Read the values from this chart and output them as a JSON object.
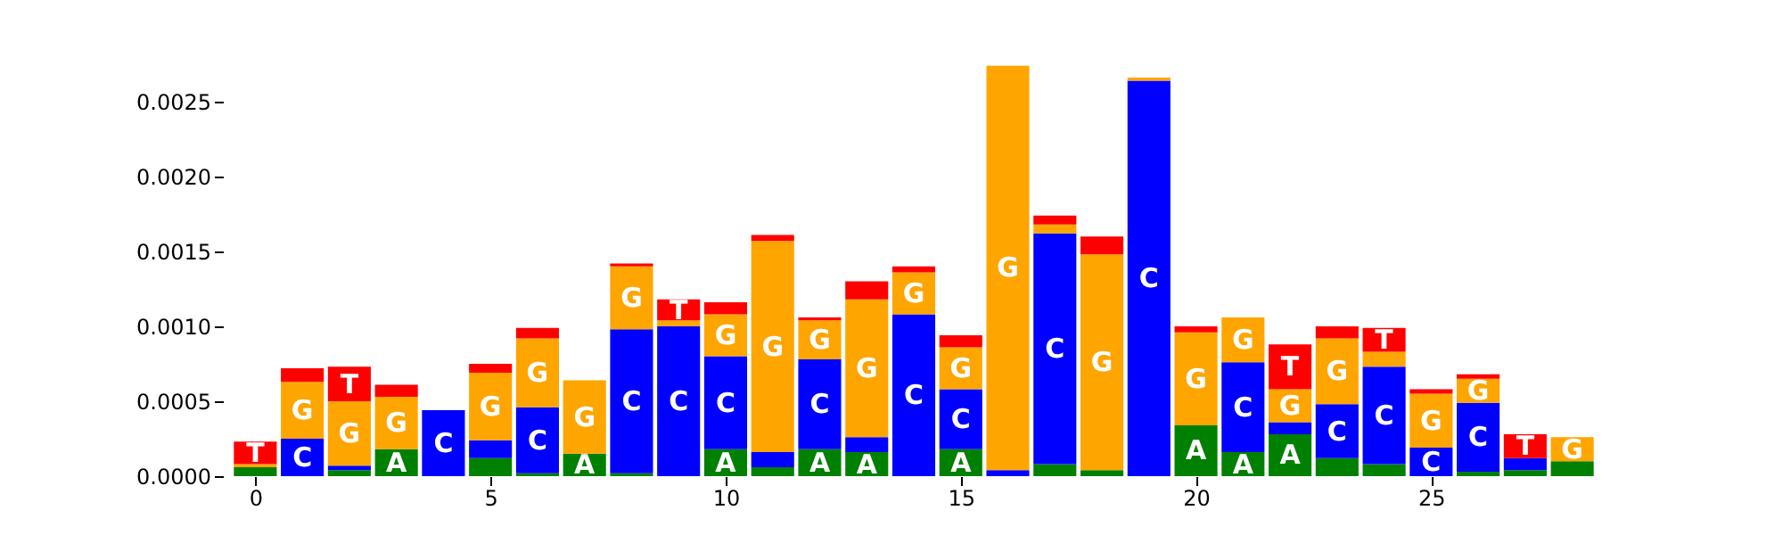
{
  "chart_data": {
    "type": "bar",
    "stacked": true,
    "x": [
      0,
      1,
      2,
      3,
      4,
      5,
      6,
      7,
      8,
      9,
      10,
      11,
      12,
      13,
      14,
      15,
      16,
      17,
      18,
      19,
      20,
      21,
      22,
      23,
      24,
      25,
      26,
      27,
      28
    ],
    "xlim": [
      -0.5,
      28.5
    ],
    "xticks": [
      0,
      5,
      10,
      15,
      20,
      25
    ],
    "ylim": [
      0,
      0.00275
    ],
    "yticks": [
      {
        "value": 0,
        "label": "0.0000"
      },
      {
        "value": 0.0005,
        "label": "0.0005"
      },
      {
        "value": 0.001,
        "label": "0.0010"
      },
      {
        "value": 0.0015,
        "label": "0.0015"
      },
      {
        "value": 0.002,
        "label": "0.0020"
      },
      {
        "value": 0.0025,
        "label": "0.0025"
      }
    ],
    "grid": false,
    "series": [
      {
        "name": "A",
        "color": "#008000",
        "values": [
          6e-05,
          0,
          4e-05,
          0.00018,
          0,
          0.00012,
          2e-05,
          0.00015,
          2e-05,
          0,
          0.00018,
          6e-05,
          0.00018,
          0.00016,
          0,
          0.00018,
          0,
          8e-05,
          4e-05,
          0,
          0.00034,
          0.00016,
          0.00028,
          0.00012,
          8e-05,
          0,
          3e-05,
          4e-05,
          0.0001
        ]
      },
      {
        "name": "C",
        "color": "#0000ff",
        "values": [
          0,
          0.00025,
          3e-05,
          0,
          0.00044,
          0.00012,
          0.00044,
          0,
          0.00096,
          0.001,
          0.00062,
          0.0001,
          0.0006,
          0.0001,
          0.00108,
          0.0004,
          4e-05,
          0.00154,
          0,
          0.00264,
          0,
          0.0006,
          8e-05,
          0.00036,
          0.00065,
          0.00019,
          0.00046,
          8e-05,
          0
        ]
      },
      {
        "name": "G",
        "color": "#ffa500",
        "values": [
          2e-05,
          0.00038,
          0.00043,
          0.00035,
          0,
          0.00045,
          0.00046,
          0.00049,
          0.00042,
          4e-05,
          0.00028,
          0.00141,
          0.00026,
          0.00092,
          0.00028,
          0.00028,
          0.0027,
          6e-05,
          0.00144,
          2e-05,
          0.00062,
          0.0003,
          0.00022,
          0.00044,
          0.0001,
          0.00036,
          0.00016,
          0,
          0.00016
        ]
      },
      {
        "name": "T",
        "color": "#ff0000",
        "values": [
          0.00015,
          9e-05,
          0.00023,
          8e-05,
          0,
          6e-05,
          7e-05,
          0,
          2e-05,
          0.00014,
          8e-05,
          4e-05,
          2e-05,
          0.00012,
          4e-05,
          8e-05,
          0,
          6e-05,
          0.00012,
          0,
          4e-05,
          0,
          0.0003,
          8e-05,
          0.00016,
          3e-05,
          3e-05,
          0.00016,
          0
        ]
      }
    ]
  }
}
